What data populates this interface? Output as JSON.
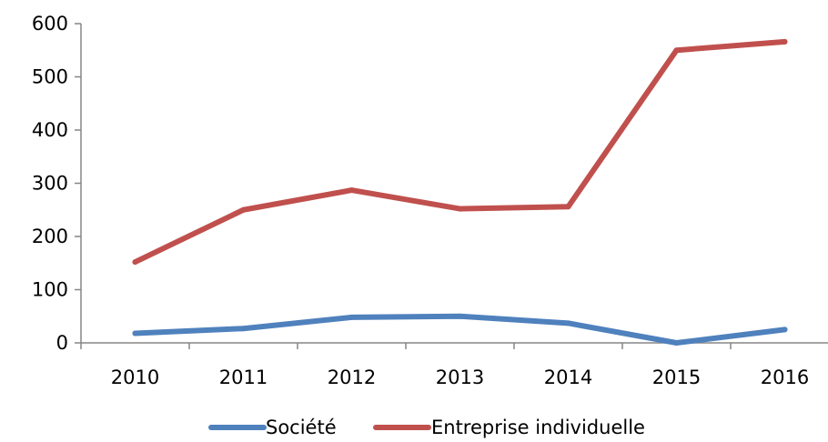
{
  "chart_data": {
    "type": "line",
    "title": "",
    "xlabel": "",
    "ylabel": "",
    "categories": [
      "2010",
      "2011",
      "2012",
      "2013",
      "2014",
      "2015",
      "2016"
    ],
    "ylim": [
      0,
      600
    ],
    "yticks": [
      0,
      100,
      200,
      300,
      400,
      500,
      600
    ],
    "grid": false,
    "legend_position": "bottom",
    "series": [
      {
        "name": "Société",
        "color": "#4F81BD",
        "values": [
          18,
          27,
          48,
          50,
          37,
          0,
          25
        ]
      },
      {
        "name": "Entreprise individuelle",
        "color": "#C0504D",
        "values": [
          152,
          250,
          287,
          252,
          256,
          550,
          566
        ]
      }
    ]
  }
}
